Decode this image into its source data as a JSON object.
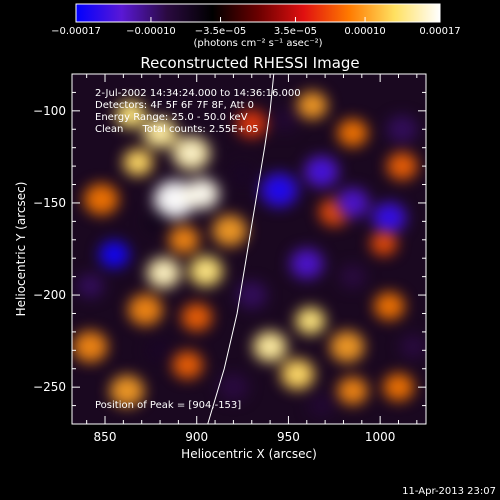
{
  "chart_data": {
    "type": "heatmap",
    "title": "Reconstructed RHESSI Image",
    "xlabel": "Heliocentric X (arcsec)",
    "ylabel": "Heliocentric Y (arcsec)",
    "xlim": [
      832,
      1025
    ],
    "ylim": [
      -270,
      -80
    ],
    "x_ticks": [
      850,
      900,
      950,
      1000
    ],
    "x_tick_labels": [
      "850",
      "900",
      "950",
      "1000"
    ],
    "y_ticks": [
      -100,
      -150,
      -200,
      -250
    ],
    "y_tick_labels": [
      "−100",
      "−150",
      "−200",
      "−250"
    ],
    "colorbar": {
      "vmin": -0.00017,
      "vmax": 0.00017,
      "ticks": [
        -0.00017,
        -0.0001,
        -3.5e-05,
        3.5e-05,
        0.0001,
        0.00017
      ],
      "tick_labels": [
        "−0.00017",
        "−0.00010",
        "−3.5e−05",
        "3.5e−05",
        "0.00010",
        "0.00017"
      ],
      "units_label": "(photons cm⁻² s⁻¹ asec⁻²)",
      "colors": [
        "#0000ff",
        "#5a18d6",
        "#2a0a40",
        "#000000",
        "#6a0000",
        "#e01010",
        "#ff7a00",
        "#ffe060",
        "#ffffff"
      ]
    },
    "annotations": [
      "2-Jul-2002 14:34:24.000 to 14:36:16.000",
      "Detectors: 4F 5F 6F 7F 8F, Att 0",
      "Energy Range: 25.0 - 50.0 keV",
      "Clean      Total counts: 2.55E+05"
    ],
    "peak_label": "Position of Peak = [904,-153]",
    "peak": [
      904,
      -153
    ],
    "limb_curve": [
      [
        906,
        -270
      ],
      [
        915,
        -240
      ],
      [
        922,
        -210
      ],
      [
        927,
        -180
      ],
      [
        932,
        -150
      ],
      [
        937,
        -120
      ],
      [
        940,
        -100
      ],
      [
        942,
        -80
      ]
    ],
    "blobs": [
      {
        "x": 888,
        "y": -148,
        "v": 1.0,
        "s": 11
      },
      {
        "x": 903,
        "y": -145,
        "v": 0.95,
        "s": 9
      },
      {
        "x": 897,
        "y": -123,
        "v": 0.85,
        "s": 10
      },
      {
        "x": 880,
        "y": -112,
        "v": 0.8,
        "s": 9
      },
      {
        "x": 868,
        "y": -128,
        "v": 0.7,
        "s": 8
      },
      {
        "x": 864,
        "y": -102,
        "v": 0.75,
        "s": 8
      },
      {
        "x": 882,
        "y": -188,
        "v": 0.85,
        "s": 9
      },
      {
        "x": 905,
        "y": -187,
        "v": 0.75,
        "s": 9
      },
      {
        "x": 893,
        "y": -170,
        "v": 0.55,
        "s": 8
      },
      {
        "x": 918,
        "y": -165,
        "v": 0.6,
        "s": 9
      },
      {
        "x": 848,
        "y": -148,
        "v": 0.5,
        "s": 9
      },
      {
        "x": 872,
        "y": -208,
        "v": 0.55,
        "s": 9
      },
      {
        "x": 900,
        "y": -212,
        "v": 0.45,
        "s": 8
      },
      {
        "x": 940,
        "y": -228,
        "v": 0.8,
        "s": 9
      },
      {
        "x": 962,
        "y": -214,
        "v": 0.75,
        "s": 8
      },
      {
        "x": 955,
        "y": -243,
        "v": 0.7,
        "s": 9
      },
      {
        "x": 982,
        "y": -228,
        "v": 0.6,
        "s": 9
      },
      {
        "x": 1005,
        "y": -206,
        "v": 0.5,
        "s": 8
      },
      {
        "x": 985,
        "y": -252,
        "v": 0.55,
        "s": 8
      },
      {
        "x": 862,
        "y": -252,
        "v": 0.6,
        "s": 9
      },
      {
        "x": 842,
        "y": -228,
        "v": 0.55,
        "s": 9
      },
      {
        "x": 895,
        "y": -238,
        "v": 0.45,
        "s": 8
      },
      {
        "x": 1010,
        "y": -250,
        "v": 0.5,
        "s": 8
      },
      {
        "x": 963,
        "y": -97,
        "v": 0.6,
        "s": 8
      },
      {
        "x": 985,
        "y": -112,
        "v": 0.5,
        "s": 8
      },
      {
        "x": 1012,
        "y": -130,
        "v": 0.45,
        "s": 8
      },
      {
        "x": 975,
        "y": -155,
        "v": 0.4,
        "s": 8
      },
      {
        "x": 1002,
        "y": -172,
        "v": 0.4,
        "s": 7
      },
      {
        "x": 930,
        "y": -107,
        "v": 0.35,
        "s": 8
      },
      {
        "x": 855,
        "y": -178,
        "v": -0.9,
        "s": 8
      },
      {
        "x": 842,
        "y": -195,
        "v": -0.55,
        "s": 7
      },
      {
        "x": 945,
        "y": -143,
        "v": -0.85,
        "s": 10
      },
      {
        "x": 968,
        "y": -133,
        "v": -0.75,
        "s": 9
      },
      {
        "x": 985,
        "y": -150,
        "v": -0.7,
        "s": 9
      },
      {
        "x": 1005,
        "y": -158,
        "v": -0.8,
        "s": 9
      },
      {
        "x": 960,
        "y": -183,
        "v": -0.7,
        "s": 9
      },
      {
        "x": 1012,
        "y": -110,
        "v": -0.55,
        "s": 8
      },
      {
        "x": 948,
        "y": -105,
        "v": -0.45,
        "s": 7
      },
      {
        "x": 930,
        "y": -200,
        "v": -0.55,
        "s": 8
      },
      {
        "x": 920,
        "y": -250,
        "v": -0.5,
        "s": 8
      },
      {
        "x": 968,
        "y": -260,
        "v": -0.45,
        "s": 7
      },
      {
        "x": 880,
        "y": -230,
        "v": -0.4,
        "s": 7
      },
      {
        "x": 1018,
        "y": -228,
        "v": -0.5,
        "s": 7
      },
      {
        "x": 925,
        "y": -135,
        "v": -0.4,
        "s": 7
      },
      {
        "x": 985,
        "y": -190,
        "v": -0.5,
        "s": 7
      },
      {
        "x": 878,
        "y": -160,
        "v": -0.35,
        "s": 6
      }
    ]
  },
  "footer": {
    "timestamp": "11-Apr-2013 23:07"
  }
}
